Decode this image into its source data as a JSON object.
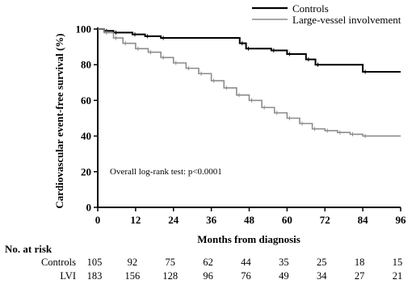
{
  "chart_data": {
    "type": "line",
    "subtype": "kaplan-meier-step",
    "xlabel": "Months from diagnosis",
    "ylabel": "Cardiovascular event-free survival (%)",
    "x_ticks": [
      0,
      12,
      24,
      36,
      48,
      60,
      72,
      84,
      96
    ],
    "y_ticks": [
      0,
      20,
      40,
      60,
      80,
      100
    ],
    "xlim": [
      0,
      96
    ],
    "ylim": [
      0,
      100
    ],
    "grid": false,
    "legend_position": "top-right",
    "annotation": "Overall log-rank test: p<0.0001",
    "series": [
      {
        "name": "Controls",
        "color": "#000000",
        "step_points": [
          [
            0,
            100
          ],
          [
            2,
            99
          ],
          [
            5,
            98
          ],
          [
            11,
            97
          ],
          [
            15,
            96
          ],
          [
            20,
            95
          ],
          [
            45,
            92
          ],
          [
            47,
            89
          ],
          [
            55,
            88
          ],
          [
            60,
            86
          ],
          [
            66,
            83
          ],
          [
            69,
            80
          ],
          [
            84,
            76
          ],
          [
            96,
            76
          ]
        ]
      },
      {
        "name": "Large-vessel involvement",
        "color": "#8c8c8c",
        "step_points": [
          [
            0,
            100
          ],
          [
            2,
            98
          ],
          [
            5,
            95
          ],
          [
            8,
            92
          ],
          [
            12,
            89
          ],
          [
            16,
            87
          ],
          [
            20,
            84
          ],
          [
            24,
            81
          ],
          [
            28,
            78
          ],
          [
            32,
            75
          ],
          [
            36,
            71
          ],
          [
            40,
            67
          ],
          [
            44,
            63
          ],
          [
            48,
            60
          ],
          [
            52,
            56
          ],
          [
            56,
            53
          ],
          [
            60,
            50
          ],
          [
            64,
            47
          ],
          [
            68,
            44
          ],
          [
            72,
            43
          ],
          [
            76,
            42
          ],
          [
            80,
            41
          ],
          [
            84,
            40
          ],
          [
            96,
            40
          ]
        ]
      }
    ],
    "risk_table": {
      "title": "No. at risk",
      "timepoints": [
        0,
        12,
        24,
        36,
        48,
        60,
        72,
        84,
        96
      ],
      "rows": [
        {
          "label": "Controls",
          "counts": [
            "105",
            "92",
            "75",
            "62",
            "44",
            "35",
            "25",
            "18",
            "15"
          ]
        },
        {
          "label": "LVI",
          "counts": [
            "183",
            "156",
            "128",
            "96",
            "76",
            "49",
            "34",
            "27",
            "21"
          ]
        }
      ]
    }
  }
}
